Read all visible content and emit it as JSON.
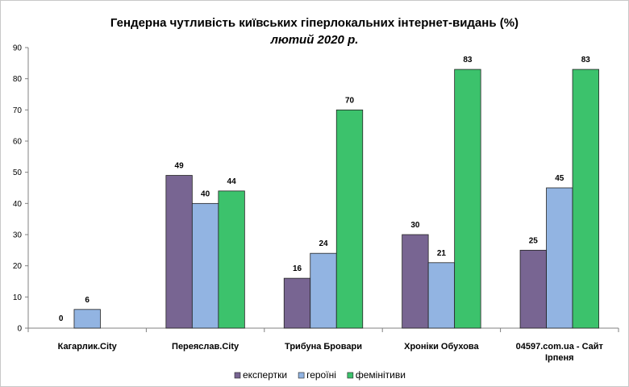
{
  "chart_data": {
    "type": "bar",
    "title": "Гендерна чутливість київських гіперлокальних інтернет-видань (%)",
    "subtitle": "лютий 2020 р.",
    "categories": [
      [
        "Кагарлик.City"
      ],
      [
        "Переяслав.City"
      ],
      [
        "Трибуна Бровари"
      ],
      [
        "Хроніки Обухова"
      ],
      [
        "04597.com.ua - Сайт",
        "Ірпеня"
      ]
    ],
    "series": [
      {
        "name": "експертки",
        "color": "#786592",
        "values": [
          0,
          49,
          16,
          30,
          25
        ]
      },
      {
        "name": "героїні",
        "color": "#92b4e2",
        "values": [
          6,
          40,
          24,
          21,
          45
        ]
      },
      {
        "name": "фемінітиви",
        "color": "#3cc26c",
        "values": [
          null,
          44,
          70,
          83,
          83
        ]
      }
    ],
    "ylim": [
      0,
      90
    ],
    "yticks": [
      0,
      10,
      20,
      30,
      40,
      50,
      60,
      70,
      80,
      90
    ],
    "grid": false,
    "legend_position": "bottom"
  }
}
